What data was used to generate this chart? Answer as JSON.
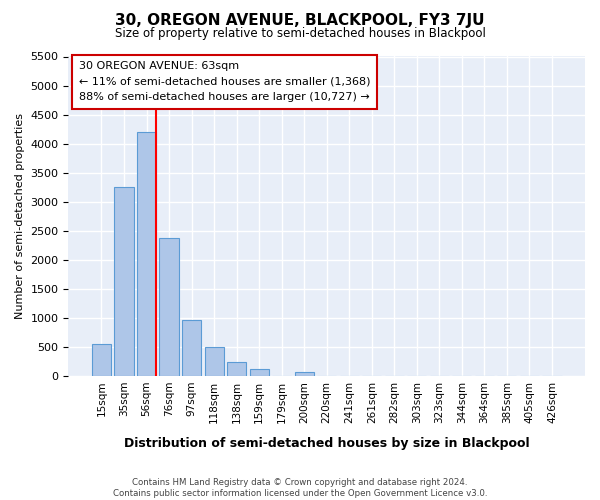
{
  "title": "30, OREGON AVENUE, BLACKPOOL, FY3 7JU",
  "subtitle": "Size of property relative to semi-detached houses in Blackpool",
  "xlabel": "Distribution of semi-detached houses by size in Blackpool",
  "ylabel": "Number of semi-detached properties",
  "bin_labels": [
    "15sqm",
    "35sqm",
    "56sqm",
    "76sqm",
    "97sqm",
    "118sqm",
    "138sqm",
    "159sqm",
    "179sqm",
    "200sqm",
    "220sqm",
    "241sqm",
    "261sqm",
    "282sqm",
    "303sqm",
    "323sqm",
    "344sqm",
    "364sqm",
    "385sqm",
    "405sqm",
    "426sqm"
  ],
  "bar_values": [
    550,
    3250,
    4200,
    2370,
    970,
    500,
    250,
    120,
    0,
    70,
    0,
    0,
    0,
    0,
    0,
    0,
    0,
    0,
    0,
    0,
    0
  ],
  "bar_color": "#aec6e8",
  "bar_edge_color": "#5b9bd5",
  "property_line_color": "red",
  "property_line_x": 2.42,
  "ylim": [
    0,
    5500
  ],
  "yticks": [
    0,
    500,
    1000,
    1500,
    2000,
    2500,
    3000,
    3500,
    4000,
    4500,
    5000,
    5500
  ],
  "annotation_title": "30 OREGON AVENUE: 63sqm",
  "annotation_line1": "← 11% of semi-detached houses are smaller (1,368)",
  "annotation_line2": "88% of semi-detached houses are larger (10,727) →",
  "annotation_box_color": "#ffffff",
  "annotation_box_edge": "#cc0000",
  "footer_line1": "Contains HM Land Registry data © Crown copyright and database right 2024.",
  "footer_line2": "Contains public sector information licensed under the Open Government Licence v3.0.",
  "bg_color": "#e8eef8"
}
